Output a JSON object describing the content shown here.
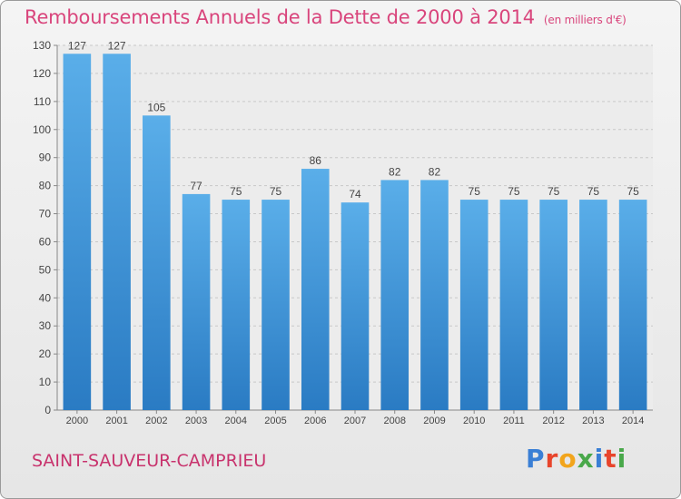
{
  "header": {
    "title": "Remboursements Annuels de la Dette de 2000 à 2014",
    "unit": "(en milliers d'€)"
  },
  "footer": {
    "commune": "SAINT-SAUVEUR-CAMPRIEU",
    "logo_letters": [
      "P",
      "r",
      "o",
      "x",
      "i",
      "t",
      "i"
    ],
    "logo_colors": [
      "#3a7fd5",
      "#e8452c",
      "#f2a51c",
      "#49a84a",
      "#3a7fd5",
      "#e8452c",
      "#49a84a"
    ]
  },
  "chart_data": {
    "type": "bar",
    "title": "Remboursements Annuels de la Dette de 2000 à 2014",
    "categories": [
      "2000",
      "2001",
      "2002",
      "2003",
      "2004",
      "2005",
      "2006",
      "2007",
      "2008",
      "2009",
      "2010",
      "2011",
      "2012",
      "2013",
      "2014"
    ],
    "values": [
      127,
      127,
      105,
      77,
      75,
      75,
      86,
      74,
      82,
      82,
      75,
      75,
      75,
      75,
      75
    ],
    "ylim": [
      0,
      130
    ],
    "yticks": [
      0,
      10,
      20,
      30,
      40,
      50,
      60,
      70,
      80,
      90,
      100,
      110,
      120,
      130
    ],
    "grid": true,
    "bar_color_top": "#5aaee9",
    "bar_color_bottom": "#2a7bc3"
  }
}
